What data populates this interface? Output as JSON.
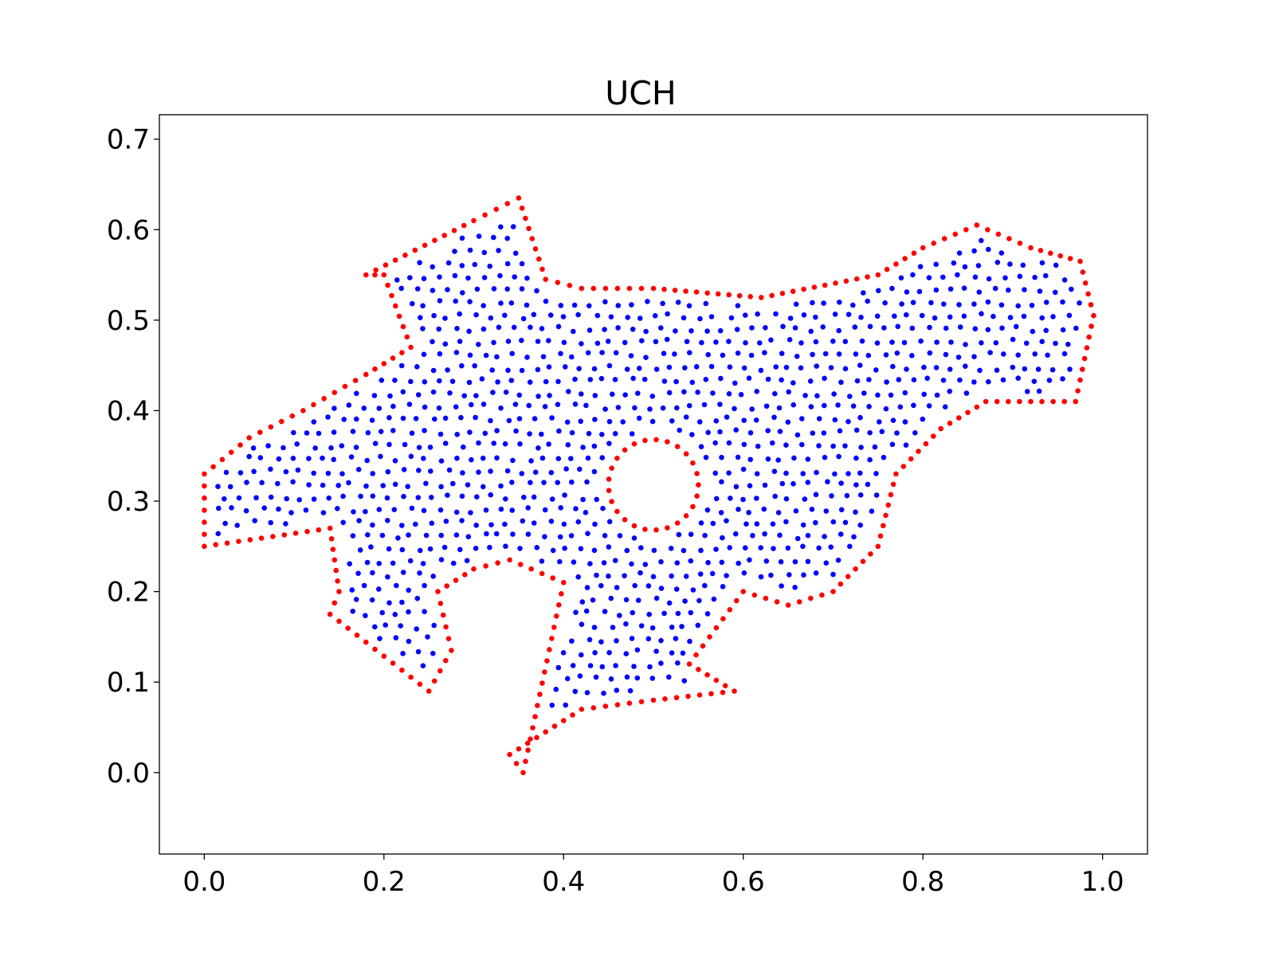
{
  "chart_data": {
    "type": "scatter",
    "title": "UCH",
    "xlabel": "",
    "ylabel": "",
    "xlim": [
      -0.05,
      1.05
    ],
    "ylim": [
      -0.09,
      0.727
    ],
    "xticks": [
      "0.0",
      "0.2",
      "0.4",
      "0.6",
      "0.8",
      "1.0"
    ],
    "xtick_values": [
      0.0,
      0.2,
      0.4,
      0.6,
      0.8,
      1.0
    ],
    "yticks": [
      "0.0",
      "0.1",
      "0.2",
      "0.3",
      "0.4",
      "0.5",
      "0.6",
      "0.7"
    ],
    "ytick_values": [
      0.0,
      0.1,
      0.2,
      0.3,
      0.4,
      0.5,
      0.6,
      0.7
    ],
    "grid": false,
    "legend": "none",
    "series": [
      {
        "role": "boundary",
        "color": "#ff0000",
        "polygon": [
          [
            0.0,
            0.25
          ],
          [
            0.14,
            0.27
          ],
          [
            0.15,
            0.2
          ],
          [
            0.14,
            0.175
          ],
          [
            0.25,
            0.09
          ],
          [
            0.275,
            0.135
          ],
          [
            0.26,
            0.2
          ],
          [
            0.3,
            0.225
          ],
          [
            0.34,
            0.235
          ],
          [
            0.4,
            0.21
          ],
          [
            0.355,
            0.0
          ],
          [
            0.34,
            0.02
          ],
          [
            0.42,
            0.07
          ],
          [
            0.5,
            0.08
          ],
          [
            0.59,
            0.09
          ],
          [
            0.54,
            0.12
          ],
          [
            0.6,
            0.2
          ],
          [
            0.65,
            0.185
          ],
          [
            0.7,
            0.2
          ],
          [
            0.75,
            0.25
          ],
          [
            0.77,
            0.33
          ],
          [
            0.82,
            0.38
          ],
          [
            0.87,
            0.41
          ],
          [
            0.97,
            0.41
          ],
          [
            0.99,
            0.505
          ],
          [
            0.975,
            0.565
          ],
          [
            0.92,
            0.58
          ],
          [
            0.86,
            0.605
          ],
          [
            0.8,
            0.58
          ],
          [
            0.75,
            0.55
          ],
          [
            0.62,
            0.525
          ],
          [
            0.5,
            0.535
          ],
          [
            0.42,
            0.535
          ],
          [
            0.38,
            0.545
          ],
          [
            0.35,
            0.635
          ],
          [
            0.3,
            0.61
          ],
          [
            0.18,
            0.55
          ],
          [
            0.2,
            0.55
          ],
          [
            0.23,
            0.47
          ],
          [
            0.18,
            0.44
          ],
          [
            0.11,
            0.4
          ],
          [
            0.05,
            0.37
          ],
          [
            0.0,
            0.33
          ]
        ],
        "hole": {
          "center": [
            0.5,
            0.318
          ],
          "radius": 0.05
        }
      },
      {
        "role": "interior",
        "color": "#0000ff",
        "fill": "dense point cloud covering the interior of the boundary polygon, excluding the hole"
      }
    ]
  }
}
